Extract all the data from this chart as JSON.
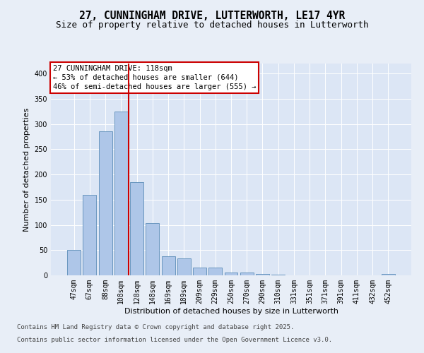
{
  "title_line1": "27, CUNNINGHAM DRIVE, LUTTERWORTH, LE17 4YR",
  "title_line2": "Size of property relative to detached houses in Lutterworth",
  "xlabel": "Distribution of detached houses by size in Lutterworth",
  "ylabel": "Number of detached properties",
  "categories": [
    "47sqm",
    "67sqm",
    "88sqm",
    "108sqm",
    "128sqm",
    "148sqm",
    "169sqm",
    "189sqm",
    "209sqm",
    "229sqm",
    "250sqm",
    "270sqm",
    "290sqm",
    "310sqm",
    "331sqm",
    "351sqm",
    "371sqm",
    "391sqm",
    "411sqm",
    "432sqm",
    "452sqm"
  ],
  "values": [
    50,
    160,
    285,
    325,
    185,
    103,
    38,
    33,
    15,
    15,
    6,
    5,
    3,
    2,
    0,
    0,
    0,
    0,
    0,
    0,
    3
  ],
  "bar_color": "#aec6e8",
  "bar_edge_color": "#5b8db8",
  "vline_index": 3,
  "vline_color": "#cc0000",
  "annotation_line1": "27 CUNNINGHAM DRIVE: 118sqm",
  "annotation_line2": "← 53% of detached houses are smaller (644)",
  "annotation_line3": "46% of semi-detached houses are larger (555) →",
  "annotation_box_color": "#ffffff",
  "annotation_box_edge_color": "#cc0000",
  "bg_color": "#e8eef7",
  "plot_bg_color": "#dce6f5",
  "grid_color": "#ffffff",
  "footer_line1": "Contains HM Land Registry data © Crown copyright and database right 2025.",
  "footer_line2": "Contains public sector information licensed under the Open Government Licence v3.0.",
  "ylim": [
    0,
    420
  ],
  "yticks": [
    0,
    50,
    100,
    150,
    200,
    250,
    300,
    350,
    400
  ],
  "title_fontsize": 10.5,
  "subtitle_fontsize": 9,
  "axis_label_fontsize": 8,
  "tick_fontsize": 7,
  "footer_fontsize": 6.5,
  "annotation_fontsize": 7.5
}
